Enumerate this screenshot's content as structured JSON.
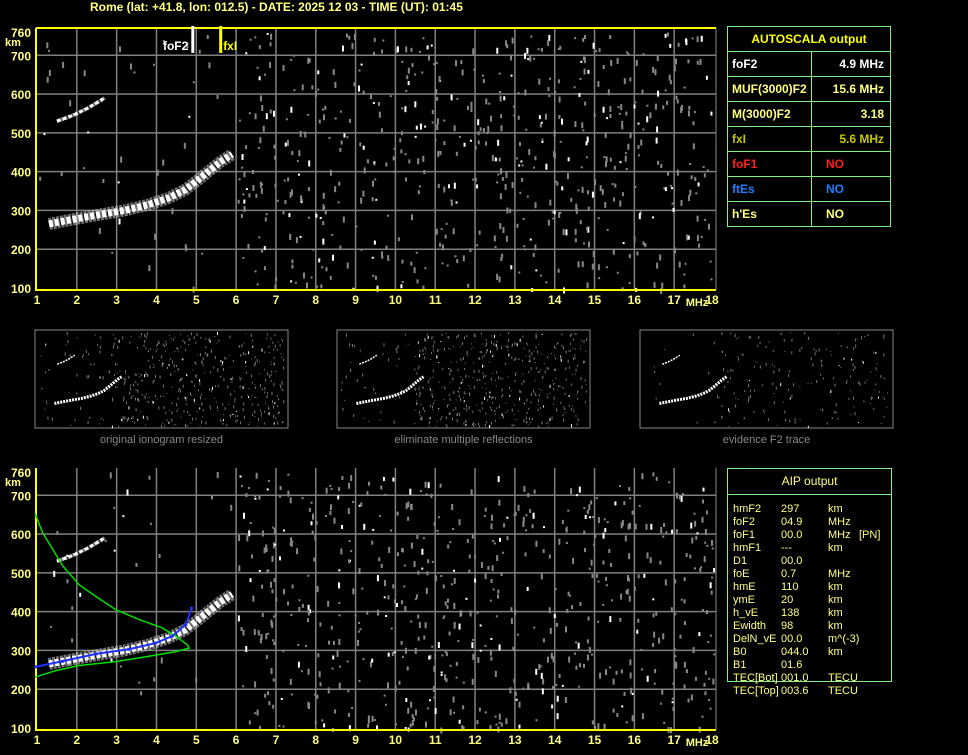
{
  "header": {
    "title": "Rome (lat: +41.8, lon: 012.5) - DATE: 2025 12 03 - TIME (UT): 01:45"
  },
  "colors": {
    "axis": "#ffff00",
    "text": "#ffff80",
    "grid": "#808080",
    "table_border": "#80f080",
    "foF1": "#ff2020",
    "ftEs": "#1e7fff",
    "fxI": "#c8c800",
    "profile": "#00e000",
    "trace": "#2030ff"
  },
  "autoscala": {
    "title": "AUTOSCALA output",
    "rows": [
      {
        "label": "foF2",
        "value": "4.9 MHz",
        "color": "#ffffff"
      },
      {
        "label": "MUF(3000)F2",
        "value": "15.6 MHz",
        "color": "#ffff80"
      },
      {
        "label": "M(3000)F2",
        "value": "3.18",
        "color": "#ffff80"
      },
      {
        "label": "fxI",
        "value": "5.6 MHz",
        "color": "#c8c800"
      },
      {
        "label": "foF1",
        "value": "NO",
        "color": "#ff2020"
      },
      {
        "label": "ftEs",
        "value": "NO",
        "color": "#1e7fff"
      },
      {
        "label": "h'Es",
        "value": "NO",
        "color": "#ffff80"
      }
    ]
  },
  "aip": {
    "title": "AIP output",
    "rows": [
      {
        "label": "hmF2",
        "value": "297",
        "unit": "km",
        "extra": ""
      },
      {
        "label": "foF2",
        "value": "04.9",
        "unit": "MHz",
        "extra": ""
      },
      {
        "label": "foF1",
        "value": "00.0",
        "unit": "MHz",
        "extra": "[PN]"
      },
      {
        "label": "hmF1",
        "value": "---",
        "unit": "km",
        "extra": ""
      },
      {
        "label": "D1",
        "value": "00.0",
        "unit": "",
        "extra": ""
      },
      {
        "label": "foE",
        "value": "0.7",
        "unit": "MHz",
        "extra": ""
      },
      {
        "label": "hmE",
        "value": "110",
        "unit": "km",
        "extra": ""
      },
      {
        "label": "ymE",
        "value": "20",
        "unit": "km",
        "extra": ""
      },
      {
        "label": "h_vE",
        "value": "138",
        "unit": "km",
        "extra": ""
      },
      {
        "label": "Ewidth",
        "value": "98",
        "unit": "km",
        "extra": ""
      },
      {
        "label": "DelN_vE",
        "value": "00.0",
        "unit": "m^(-3)",
        "extra": ""
      },
      {
        "label": "B0",
        "value": "044.0",
        "unit": "km",
        "extra": ""
      },
      {
        "label": "B1",
        "value": "01.6",
        "unit": "",
        "extra": ""
      },
      {
        "label": "TEC[Bot]",
        "value": "001.0",
        "unit": "TECU",
        "extra": ""
      },
      {
        "label": "TEC[Top]",
        "value": "003.6",
        "unit": "TECU",
        "extra": ""
      }
    ]
  },
  "thumbnails": [
    {
      "caption": "original ionogram resized"
    },
    {
      "caption": "eliminate multiple reflections"
    },
    {
      "caption": "evidence F2 trace"
    }
  ],
  "chart_data": [
    {
      "type": "scatter",
      "xlabel": "MHz",
      "ylabel": "km",
      "xlim": [
        1,
        18
      ],
      "ylim": [
        100,
        760
      ],
      "xticks": [
        "1",
        "2",
        "3",
        "4",
        "5",
        "6",
        "7",
        "8",
        "9",
        "10",
        "11",
        "12",
        "13",
        "14",
        "15",
        "16",
        "17",
        "18"
      ],
      "yticks": [
        "100",
        "200",
        "300",
        "400",
        "500",
        "600",
        "700",
        "760"
      ],
      "grid": true,
      "markers": [
        {
          "name": "foF2",
          "x": 4.9
        },
        {
          "name": "fxI",
          "x": 5.6
        }
      ],
      "echo_traces": [
        {
          "x": [
            1.3,
            1.8,
            2.5,
            3.2,
            3.8,
            4.3,
            4.7,
            5.0,
            5.3,
            5.6,
            5.9
          ],
          "y": [
            265,
            275,
            288,
            300,
            315,
            332,
            352,
            375,
            400,
            425,
            445
          ]
        },
        {
          "x": [
            1.5,
            1.9,
            2.3,
            2.7
          ],
          "y": [
            530,
            545,
            565,
            590
          ]
        }
      ]
    },
    {
      "type": "line",
      "xlabel": "MHz",
      "ylabel": "km",
      "xlim": [
        1,
        18
      ],
      "ylim": [
        100,
        760
      ],
      "xticks": [
        "1",
        "2",
        "3",
        "4",
        "5",
        "6",
        "7",
        "8",
        "9",
        "10",
        "11",
        "12",
        "13",
        "14",
        "15",
        "16",
        "17",
        "18"
      ],
      "yticks": [
        "100",
        "200",
        "300",
        "400",
        "500",
        "600",
        "700",
        "760"
      ],
      "grid": true,
      "series": [
        {
          "kind": "profile",
          "x": [
            0.95,
            1.14,
            1.64,
            2.06,
            2.48,
            2.98,
            3.56,
            4.15,
            4.48,
            4.78,
            4.82,
            4.49,
            3.98,
            2.98,
            2.06,
            1.47,
            0.95
          ],
          "y": [
            653,
            604,
            519,
            469,
            439,
            405,
            380,
            358,
            337,
            314,
            306,
            297,
            288,
            271,
            261,
            248,
            231
          ]
        },
        {
          "kind": "trace",
          "x": [
            0.97,
            1.64,
            2.48,
            3.31,
            3.98,
            4.4,
            4.74,
            4.88
          ],
          "y": [
            258,
            272,
            291,
            303,
            319,
            337,
            367,
            409
          ]
        }
      ],
      "echo_traces": [
        {
          "x": [
            1.3,
            1.8,
            2.5,
            3.2,
            3.8,
            4.3,
            4.7,
            5.0,
            5.3,
            5.6,
            5.9
          ],
          "y": [
            265,
            275,
            288,
            300,
            315,
            332,
            352,
            375,
            400,
            425,
            445
          ]
        },
        {
          "x": [
            1.5,
            1.9,
            2.3,
            2.7
          ],
          "y": [
            530,
            545,
            565,
            590
          ]
        }
      ]
    }
  ]
}
